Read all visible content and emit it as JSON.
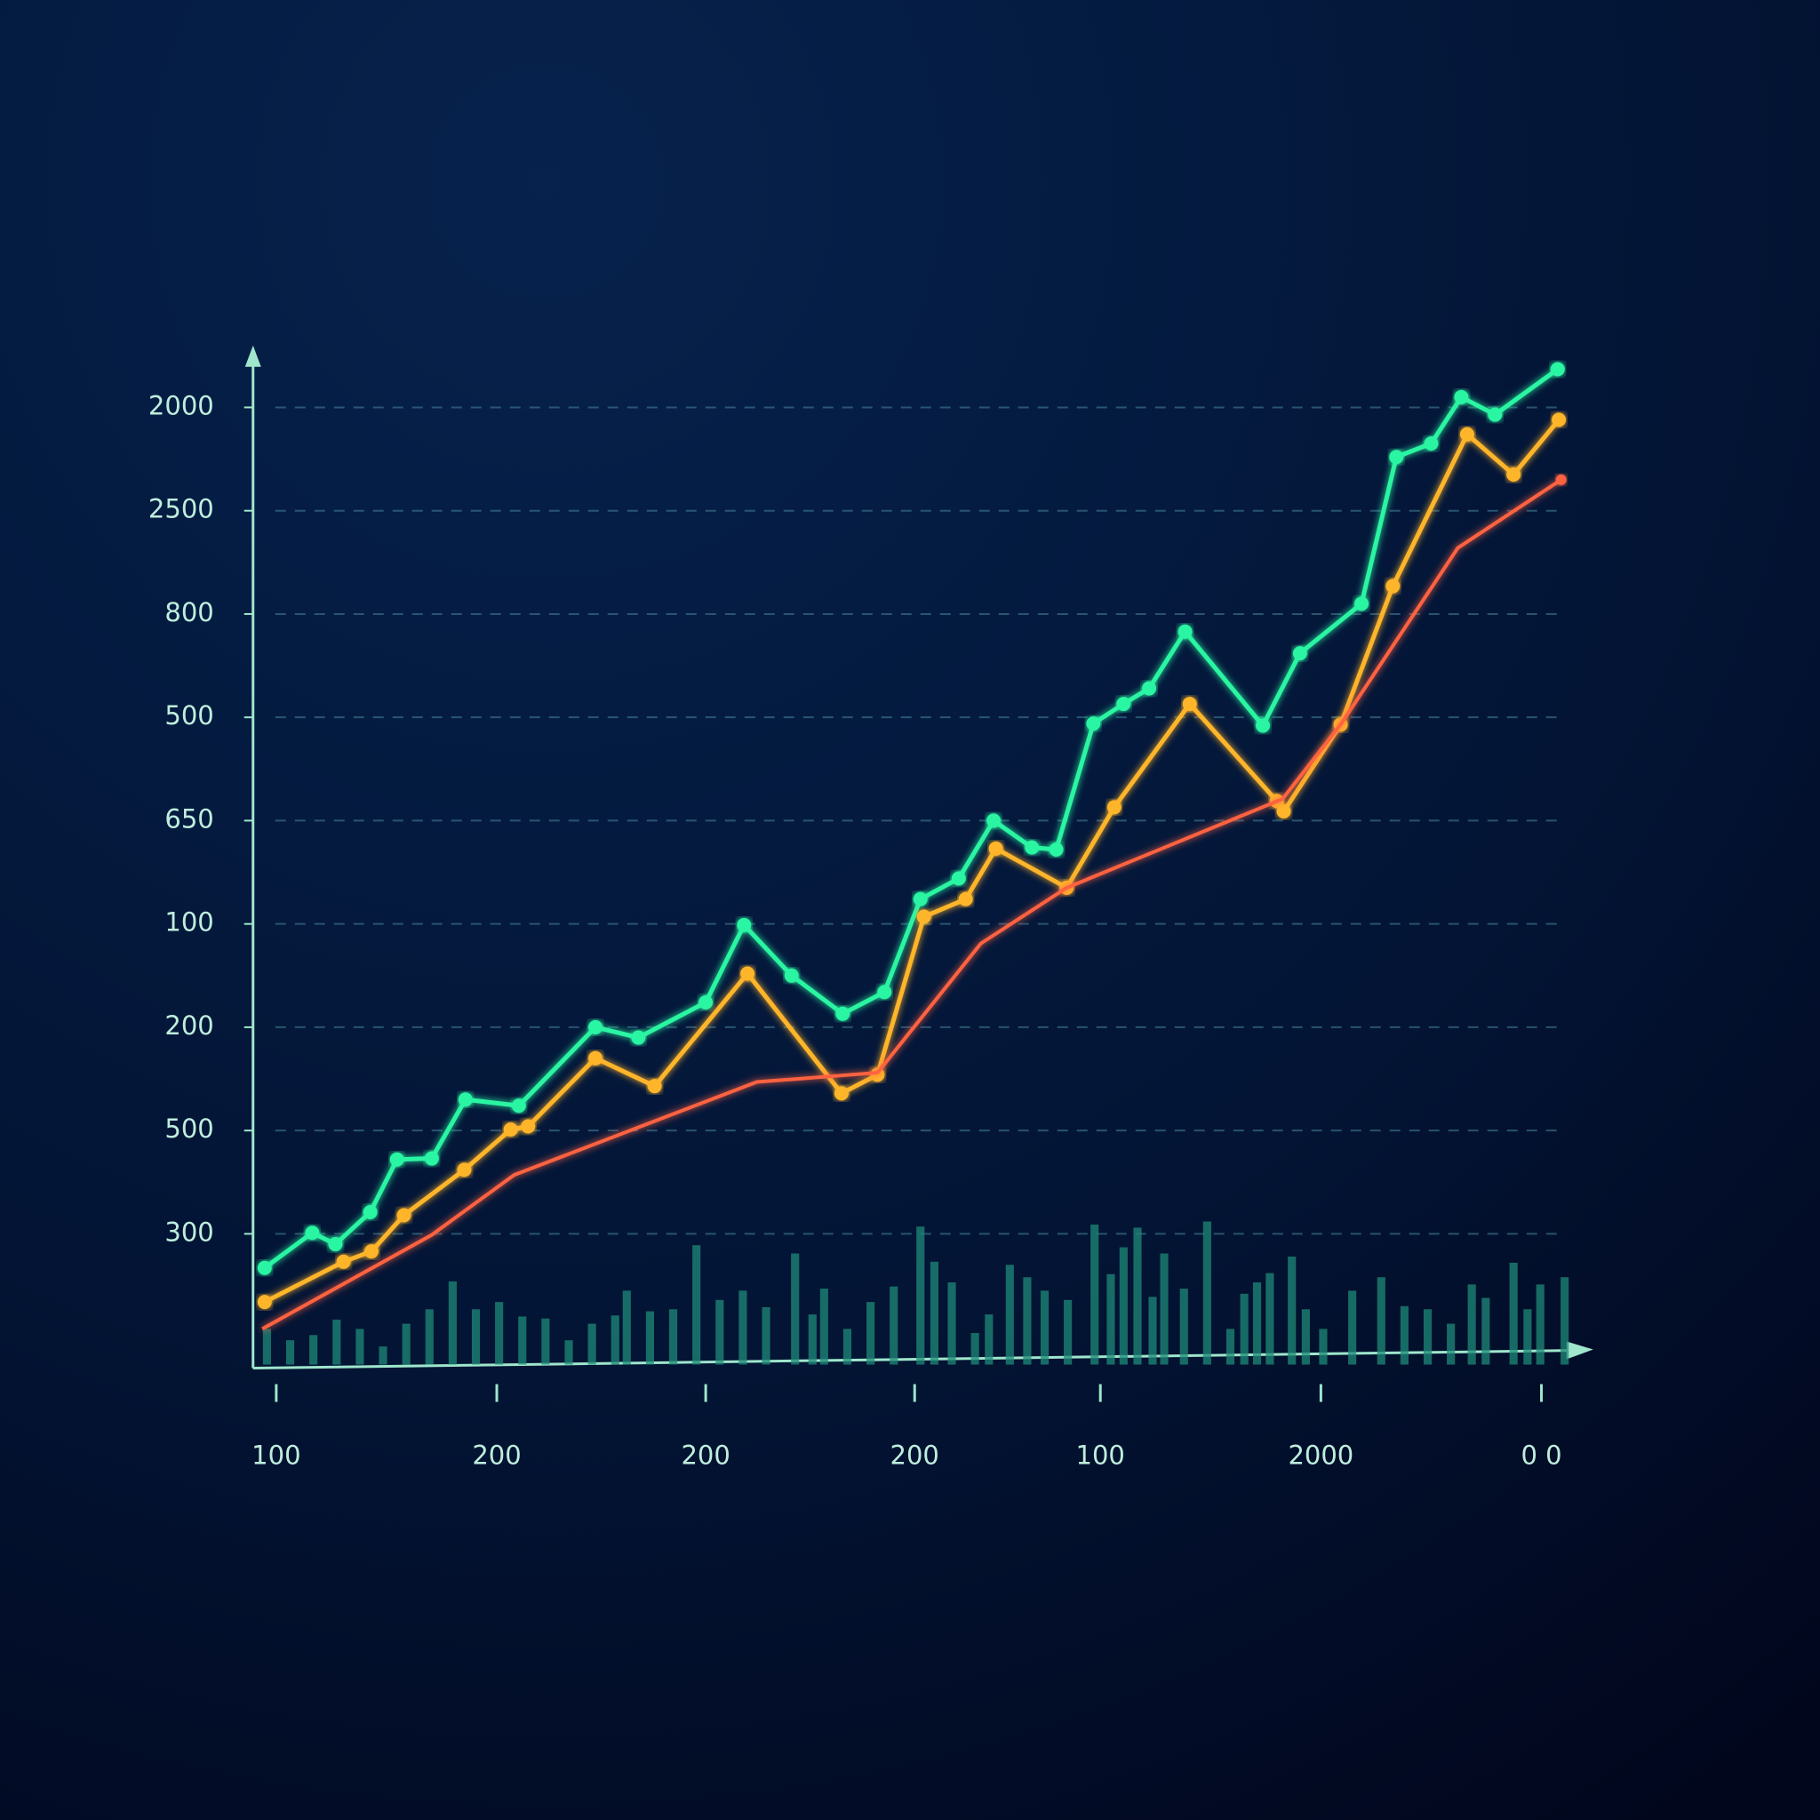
{
  "chart_data": {
    "type": "line",
    "xlim": [
      0,
      11.5
    ],
    "xticks": [
      {
        "value": 0.2,
        "label": "100"
      },
      {
        "value": 2.1,
        "label": "200"
      },
      {
        "value": 3.9,
        "label": "200"
      },
      {
        "value": 5.7,
        "label": "200"
      },
      {
        "value": 7.3,
        "label": "100"
      },
      {
        "value": 9.2,
        "label": "2000"
      },
      {
        "value": 11.1,
        "label": "0 0"
      }
    ],
    "ylim": [
      -0.3,
      9.6
    ],
    "yticks": [
      {
        "value": 1,
        "label": "300"
      },
      {
        "value": 2,
        "label": "500"
      },
      {
        "value": 3,
        "label": "200"
      },
      {
        "value": 4,
        "label": "100"
      },
      {
        "value": 5,
        "label": "650"
      },
      {
        "value": 6,
        "label": "500"
      },
      {
        "value": 7,
        "label": "800"
      },
      {
        "value": 8,
        "label": "2500"
      },
      {
        "value": 9,
        "label": "2000"
      }
    ],
    "grid": true,
    "series": [
      {
        "color": "#2cf5a2",
        "markers": true,
        "x": [
          0.1,
          0.51,
          0.71,
          1.01,
          1.24,
          1.54,
          1.83,
          2.29,
          2.95,
          3.32,
          3.9,
          4.23,
          4.64,
          5.08,
          5.44,
          5.75,
          6.08,
          6.38,
          6.71,
          6.92,
          7.24,
          7.5,
          7.72,
          8.03,
          8.7,
          9.02,
          9.55,
          9.85,
          10.15,
          10.41,
          10.7,
          11.24
        ],
        "values": [
          0.67,
          1.01,
          0.9,
          1.21,
          1.72,
          1.73,
          2.3,
          2.24,
          3.0,
          2.9,
          3.24,
          3.99,
          3.5,
          3.13,
          3.34,
          4.24,
          4.44,
          5.0,
          4.74,
          4.72,
          5.94,
          6.13,
          6.28,
          6.83,
          5.92,
          6.62,
          7.1,
          8.52,
          8.65,
          9.1,
          8.93,
          9.37
        ]
      },
      {
        "color": "#ffb52a",
        "markers": true,
        "x": [
          0.1,
          0.78,
          1.02,
          1.3,
          1.82,
          2.22,
          2.37,
          2.95,
          3.46,
          4.26,
          5.07,
          5.38,
          5.78,
          6.14,
          6.4,
          7.01,
          7.42,
          8.07,
          8.82,
          8.88,
          9.37,
          9.82,
          10.46,
          10.86,
          11.25
        ],
        "values": [
          0.34,
          0.73,
          0.83,
          1.18,
          1.62,
          2.01,
          2.04,
          2.7,
          2.43,
          3.52,
          2.36,
          2.54,
          4.07,
          4.24,
          4.73,
          4.35,
          5.13,
          6.13,
          5.19,
          5.09,
          5.93,
          7.27,
          8.74,
          8.35,
          8.88
        ]
      },
      {
        "color": "#ff6240",
        "markers": false,
        "x": [
          0.08,
          1.54,
          2.25,
          4.34,
          5.38,
          6.27,
          7.01,
          8.87,
          9.37,
          10.38,
          11.27
        ],
        "values": [
          0.08,
          0.99,
          1.57,
          2.47,
          2.56,
          3.81,
          4.35,
          5.21,
          5.93,
          7.64,
          8.3
        ]
      }
    ],
    "bars": {
      "color": "#1f8a78",
      "x": [
        0.12,
        0.32,
        0.52,
        0.72,
        0.92,
        1.12,
        1.32,
        1.52,
        1.72,
        1.92,
        2.12,
        2.32,
        2.52,
        2.72,
        2.92,
        3.12,
        3.22,
        3.42,
        3.62,
        3.82,
        4.02,
        4.22,
        4.42,
        4.67,
        4.82,
        4.92,
        5.12,
        5.32,
        5.52,
        5.75,
        5.87,
        6.02,
        6.22,
        6.34,
        6.52,
        6.67,
        6.82,
        7.02,
        7.25,
        7.39,
        7.5,
        7.62,
        7.75,
        7.85,
        8.02,
        8.22,
        8.42,
        8.54,
        8.65,
        8.76,
        8.95,
        9.07,
        9.22,
        9.47,
        9.72,
        9.92,
        10.12,
        10.32,
        10.5,
        10.62,
        10.86,
        10.98,
        11.09,
        11.3
      ],
      "values": [
        0.08,
        -0.03,
        0.02,
        0.17,
        0.08,
        -0.09,
        0.13,
        0.27,
        0.54,
        0.27,
        0.34,
        0.2,
        0.18,
        -0.03,
        0.13,
        0.21,
        0.45,
        0.25,
        0.27,
        0.89,
        0.36,
        0.45,
        0.29,
        0.81,
        0.22,
        0.47,
        0.08,
        0.34,
        0.49,
        1.07,
        0.73,
        0.53,
        0.04,
        0.22,
        0.7,
        0.58,
        0.45,
        0.36,
        1.09,
        0.61,
        0.87,
        1.06,
        0.39,
        0.81,
        0.47,
        1.12,
        0.08,
        0.42,
        0.53,
        0.62,
        0.78,
        0.27,
        0.08,
        0.45,
        0.58,
        0.3,
        0.27,
        0.13,
        0.51,
        0.38,
        0.72,
        0.27,
        0.51,
        0.58
      ]
    }
  }
}
